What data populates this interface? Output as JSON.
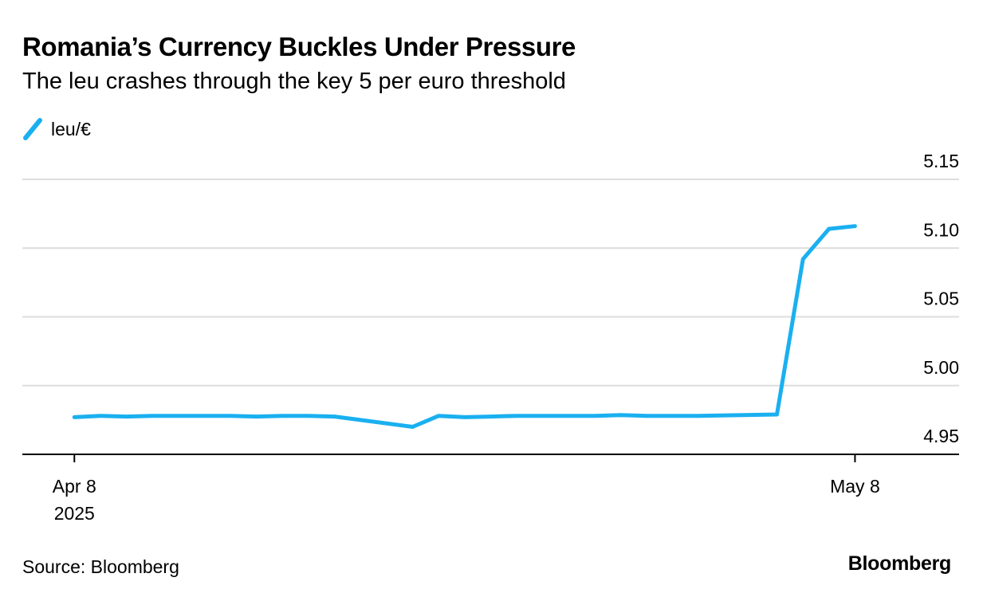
{
  "title": "Romania’s Currency Buckles Under Pressure",
  "subtitle": "The leu crashes through the key 5 per euro threshold",
  "source": "Source: Bloomberg",
  "logo_text": "Bloomberg",
  "colors": {
    "series": "#1ab0f0",
    "grid": "#dddddd",
    "axis": "#000000",
    "text": "#000000"
  },
  "chart_data": {
    "type": "line",
    "title": "Romania’s Currency Buckles Under Pressure",
    "subtitle": "The leu crashes through the key 5 per euro threshold",
    "xlabel": "",
    "ylabel": "",
    "x_range": [
      "2025-04-06",
      "2025-05-12"
    ],
    "ylim": [
      4.95,
      5.15
    ],
    "y_ticks": [
      4.95,
      5.0,
      5.05,
      5.1,
      5.15
    ],
    "y_tick_labels": [
      "4.95",
      "5.00",
      "5.05",
      "5.10",
      "5.15"
    ],
    "x_ticks": [
      {
        "date": "2025-04-08",
        "label": [
          "Apr 8",
          "2025"
        ]
      },
      {
        "date": "2025-05-08",
        "label": [
          "May 8"
        ]
      }
    ],
    "grid": true,
    "y_axis_side": "right",
    "legend": "top-left",
    "series": [
      {
        "name": "leu/€",
        "color": "#1ab0f0",
        "points": [
          [
            "2025-04-08",
            4.977
          ],
          [
            "2025-04-09",
            4.978
          ],
          [
            "2025-04-10",
            4.9775
          ],
          [
            "2025-04-11",
            4.978
          ],
          [
            "2025-04-14",
            4.978
          ],
          [
            "2025-04-15",
            4.9775
          ],
          [
            "2025-04-16",
            4.978
          ],
          [
            "2025-04-17",
            4.978
          ],
          [
            "2025-04-18",
            4.9775
          ],
          [
            "2025-04-21",
            4.97
          ],
          [
            "2025-04-22",
            4.978
          ],
          [
            "2025-04-23",
            4.977
          ],
          [
            "2025-04-24",
            4.9775
          ],
          [
            "2025-04-25",
            4.978
          ],
          [
            "2025-04-28",
            4.978
          ],
          [
            "2025-04-29",
            4.9785
          ],
          [
            "2025-04-30",
            4.978
          ],
          [
            "2025-05-01",
            4.978
          ],
          [
            "2025-05-02",
            4.978
          ],
          [
            "2025-05-05",
            4.979
          ],
          [
            "2025-05-06",
            5.092
          ],
          [
            "2025-05-07",
            5.114
          ],
          [
            "2025-05-08",
            5.116
          ]
        ]
      }
    ]
  }
}
